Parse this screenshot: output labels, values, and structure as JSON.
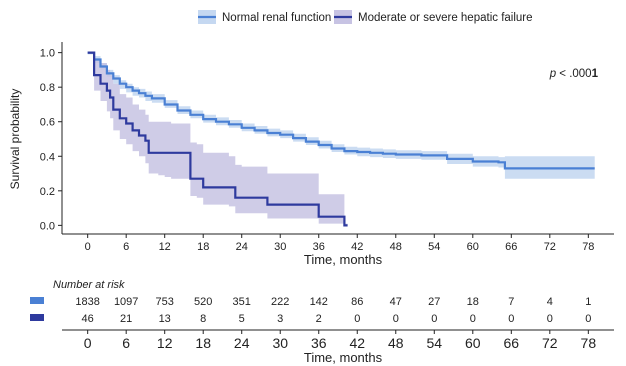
{
  "chart_data": {
    "type": "line",
    "subtype": "kaplan-meier",
    "xlabel": "Time, months",
    "ylabel": "Survival probability",
    "xlim": [
      -4,
      82
    ],
    "ylim": [
      -0.05,
      1.05
    ],
    "xticks": [
      0,
      6,
      12,
      18,
      24,
      30,
      36,
      42,
      48,
      54,
      60,
      66,
      72,
      78
    ],
    "yticks": [
      0.0,
      0.2,
      0.4,
      0.6,
      0.8,
      1.0
    ],
    "ytick_labels": [
      "0.0",
      "0.2",
      "0.4",
      "0.6",
      "0.8",
      "1.0"
    ],
    "grid": false,
    "legend_position": "top",
    "annotation": {
      "prefix": "p",
      "text": " < .000",
      "bold": "1"
    },
    "series": [
      {
        "name": "Normal renal function",
        "color": "#4a80d4",
        "band_color": "#c5d8f1",
        "x": [
          0,
          1,
          2,
          3,
          4,
          5,
          6,
          7,
          8,
          9,
          10,
          12,
          14,
          16,
          18,
          20,
          22,
          24,
          26,
          28,
          30,
          32,
          34,
          36,
          38,
          40,
          42,
          44,
          46,
          48,
          52,
          56,
          60,
          64,
          65,
          79
        ],
        "y": [
          1.0,
          0.96,
          0.92,
          0.88,
          0.85,
          0.82,
          0.8,
          0.78,
          0.765,
          0.75,
          0.735,
          0.7,
          0.665,
          0.64,
          0.615,
          0.6,
          0.585,
          0.565,
          0.55,
          0.535,
          0.525,
          0.505,
          0.485,
          0.465,
          0.445,
          0.43,
          0.425,
          0.42,
          0.415,
          0.41,
          0.405,
          0.385,
          0.37,
          0.365,
          0.33,
          0.33
        ],
        "lower": [
          0.99,
          0.94,
          0.9,
          0.86,
          0.82,
          0.79,
          0.77,
          0.75,
          0.74,
          0.72,
          0.71,
          0.68,
          0.645,
          0.62,
          0.595,
          0.58,
          0.565,
          0.545,
          0.53,
          0.515,
          0.505,
          0.485,
          0.465,
          0.445,
          0.425,
          0.41,
          0.4,
          0.395,
          0.39,
          0.385,
          0.38,
          0.355,
          0.34,
          0.335,
          0.27,
          0.27
        ],
        "upper": [
          1.0,
          0.98,
          0.94,
          0.9,
          0.87,
          0.84,
          0.82,
          0.8,
          0.79,
          0.775,
          0.76,
          0.725,
          0.69,
          0.665,
          0.64,
          0.625,
          0.61,
          0.59,
          0.575,
          0.56,
          0.55,
          0.53,
          0.51,
          0.49,
          0.47,
          0.455,
          0.45,
          0.445,
          0.44,
          0.435,
          0.43,
          0.415,
          0.4,
          0.395,
          0.4,
          0.4
        ]
      },
      {
        "name": "Moderate or severe hepatic failure",
        "color": "#2e3a9e",
        "band_color": "#c7c3e3",
        "x": [
          0,
          1,
          2,
          3,
          3.5,
          4,
          5,
          6,
          7,
          8,
          9,
          9.5,
          11,
          12,
          13,
          16,
          17,
          18,
          22,
          23,
          24,
          28,
          30,
          35,
          36,
          40,
          40.5
        ],
        "y": [
          1.0,
          0.87,
          0.82,
          0.78,
          0.74,
          0.67,
          0.62,
          0.59,
          0.55,
          0.52,
          0.49,
          0.42,
          0.42,
          0.42,
          0.42,
          0.27,
          0.27,
          0.22,
          0.22,
          0.16,
          0.16,
          0.12,
          0.12,
          0.12,
          0.05,
          0.0,
          0.0
        ],
        "lower": [
          1.0,
          0.78,
          0.72,
          0.66,
          0.62,
          0.55,
          0.5,
          0.47,
          0.43,
          0.4,
          0.36,
          0.3,
          0.29,
          0.28,
          0.27,
          0.17,
          0.16,
          0.12,
          0.11,
          0.07,
          0.07,
          0.04,
          0.04,
          0.04,
          0.01,
          0.0,
          0.0
        ],
        "upper": [
          1.0,
          0.96,
          0.94,
          0.9,
          0.87,
          0.82,
          0.76,
          0.74,
          0.7,
          0.67,
          0.64,
          0.6,
          0.6,
          0.6,
          0.59,
          0.48,
          0.47,
          0.42,
          0.4,
          0.35,
          0.34,
          0.3,
          0.3,
          0.3,
          0.18,
          0.01,
          0.01
        ]
      }
    ],
    "risk_table": {
      "title": "Number at risk",
      "times": [
        0,
        6,
        12,
        18,
        24,
        30,
        36,
        42,
        48,
        54,
        60,
        66,
        72,
        78
      ],
      "rows": [
        {
          "name": "Normal renal function",
          "color": "#4a80d4",
          "values": [
            "1838",
            "1097",
            "753",
            "520",
            "351",
            "222",
            "142",
            "86",
            "47",
            "27",
            "18",
            "7",
            "4",
            "1"
          ]
        },
        {
          "name": "Moderate or severe hepatic failure",
          "color": "#2e3a9e",
          "values": [
            "46",
            "21",
            "13",
            "8",
            "5",
            "3",
            "2",
            "0",
            "0",
            "0",
            "0",
            "0",
            "0",
            "0"
          ]
        }
      ],
      "xlabel": "Time, months"
    }
  }
}
